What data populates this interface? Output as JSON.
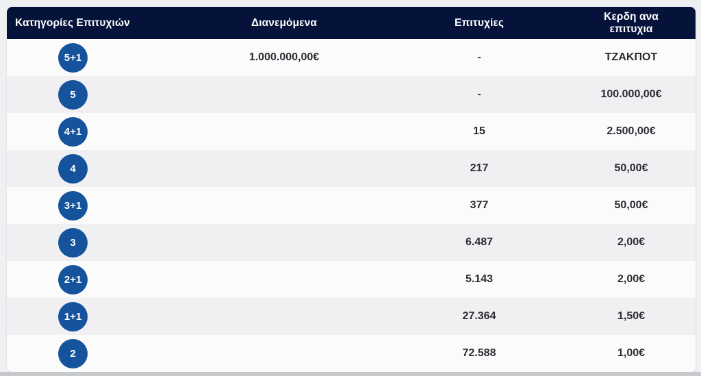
{
  "table": {
    "headers": {
      "categories": "Κατηγορίες Επιτυχιών",
      "distributed": "Διανεμόμενα",
      "wins": "Επιτυχίες",
      "prize_per_win": "Κερδη ανα επιτυχια"
    },
    "rows": [
      {
        "category": "5+1",
        "distributed": "1.000.000,00€",
        "wins": "-",
        "prize": "ΤΖΑΚΠΟΤ"
      },
      {
        "category": "5",
        "distributed": "",
        "wins": "-",
        "prize": "100.000,00€"
      },
      {
        "category": "4+1",
        "distributed": "",
        "wins": "15",
        "prize": "2.500,00€"
      },
      {
        "category": "4",
        "distributed": "",
        "wins": "217",
        "prize": "50,00€"
      },
      {
        "category": "3+1",
        "distributed": "",
        "wins": "377",
        "prize": "50,00€"
      },
      {
        "category": "3",
        "distributed": "",
        "wins": "6.487",
        "prize": "2,00€"
      },
      {
        "category": "2+1",
        "distributed": "",
        "wins": "5.143",
        "prize": "2,00€"
      },
      {
        "category": "1+1",
        "distributed": "",
        "wins": "27.364",
        "prize": "1,50€"
      },
      {
        "category": "2",
        "distributed": "",
        "wins": "72.588",
        "prize": "1,00€"
      }
    ]
  },
  "colors": {
    "header_bg": "#05123a",
    "badge_bg": "#15549c",
    "row_white": "#fbfbfc",
    "row_gray": "#f0f0f2",
    "page_bg": "#eff0f2",
    "bottom_strip": "#c6c8cb",
    "text_dark": "#2b2c33"
  }
}
